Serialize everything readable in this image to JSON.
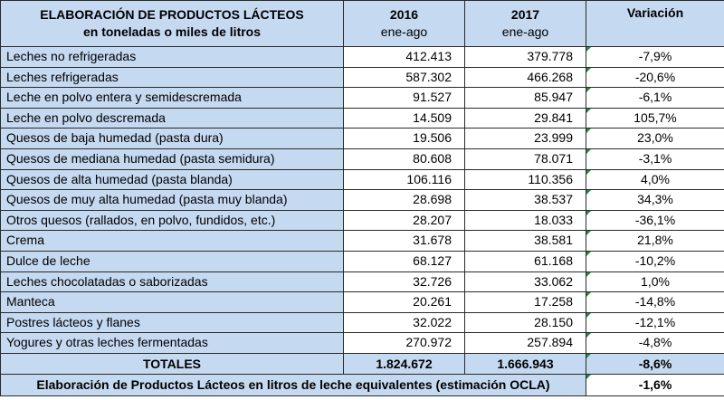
{
  "header": {
    "title_line1": "ELABORACIÓN DE PRODUCTOS LÁCTEOS",
    "title_line2": "en toneladas o miles de litros",
    "col_2016_year": "2016",
    "col_2016_period": "ene-ago",
    "col_2017_year": "2017",
    "col_2017_period": "ene-ago",
    "col_variation": "Variación"
  },
  "rows": [
    {
      "label": "Leches no refrigeradas",
      "v2016": "412.413",
      "v2017": "379.778",
      "var": "-7,9%"
    },
    {
      "label": "Leches refrigeradas",
      "v2016": "587.302",
      "v2017": "466.268",
      "var": "-20,6%"
    },
    {
      "label": "Leche en polvo entera y semidescremada",
      "v2016": "91.527",
      "v2017": "85.947",
      "var": "-6,1%"
    },
    {
      "label": "Leche en polvo descremada",
      "v2016": "14.509",
      "v2017": "29.841",
      "var": "105,7%"
    },
    {
      "label": "Quesos de baja humedad (pasta dura)",
      "v2016": "19.506",
      "v2017": "23.999",
      "var": "23,0%"
    },
    {
      "label": "Quesos de mediana humedad (pasta semidura)",
      "v2016": "80.608",
      "v2017": "78.071",
      "var": "-3,1%"
    },
    {
      "label": "Quesos de alta humedad (pasta blanda)",
      "v2016": "106.116",
      "v2017": "110.356",
      "var": "4,0%"
    },
    {
      "label": "Quesos de muy alta humedad (pasta muy blanda)",
      "v2016": "28.698",
      "v2017": "38.537",
      "var": "34,3%"
    },
    {
      "label": "Otros quesos (rallados, en polvo, fundidos, etc.)",
      "v2016": "28.207",
      "v2017": "18.033",
      "var": "-36,1%"
    },
    {
      "label": "Crema",
      "v2016": "31.678",
      "v2017": "38.581",
      "var": "21,8%"
    },
    {
      "label": "Dulce de leche",
      "v2016": "68.127",
      "v2017": "61.168",
      "var": "-10,2%"
    },
    {
      "label": "Leches chocolatadas o saborizadas",
      "v2016": "32.726",
      "v2017": "33.062",
      "var": "1,0%"
    },
    {
      "label": "Manteca",
      "v2016": "20.261",
      "v2017": "17.258",
      "var": "-14,8%"
    },
    {
      "label": "Postres lácteos y flanes",
      "v2016": "32.022",
      "v2017": "28.150",
      "var": "-12,1%"
    },
    {
      "label": "Yogures y otras leches fermentadas",
      "v2016": "270.972",
      "v2017": "257.894",
      "var": "-4,8%"
    }
  ],
  "totals": {
    "label": "TOTALES",
    "v2016": "1.824.672",
    "v2017": "1.666.943",
    "var": "-8,6%"
  },
  "footer": {
    "label": "Elaboración de Productos Lácteos en litros de leche equivalentes (estimación OCLA)",
    "var": "-1,6%"
  }
}
